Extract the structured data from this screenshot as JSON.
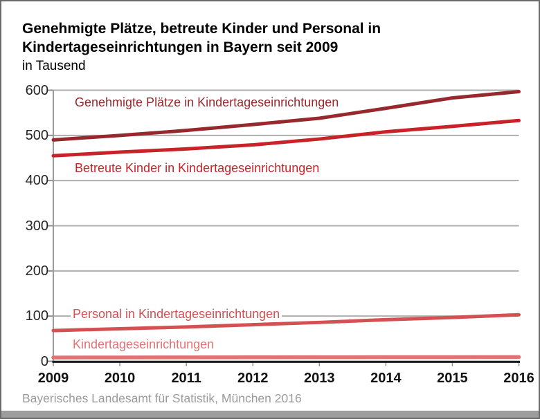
{
  "page": {
    "title_line1": "Genehmigte Plätze, betreute Kinder und Personal in",
    "title_line2": "Kindertageseinrichtungen in Bayern seit 2009",
    "subtitle": "in Tausend",
    "footer": "Bayerisches Landesamt für Statistik, München 2016"
  },
  "chart_data": {
    "type": "line",
    "title": "Genehmigte Plätze, betreute Kinder und Personal in Kindertageseinrichtungen in Bayern seit 2009",
    "subtitle": "in Tausend",
    "x": [
      2009,
      2010,
      2011,
      2012,
      2013,
      2014,
      2015,
      2016
    ],
    "ylim": [
      0,
      600
    ],
    "yticks": [
      0,
      100,
      200,
      300,
      400,
      500,
      600
    ],
    "grid": true,
    "legend_position": "inline-labels",
    "colors": {
      "gridline": "#aeaeae",
      "y_axis": "#9a9a9a",
      "x_axis": "#1c1c1c",
      "tick": "#8f8f8f",
      "footer_gray": "#9b9b9b"
    },
    "series": [
      {
        "name": "Genehmigte Plätze in Kindertageseinrichtungen",
        "color": "#97292E",
        "values": [
          490,
          500,
          511,
          524,
          538,
          560,
          583,
          597
        ]
      },
      {
        "name": "Betreute Kinder in Kindertageseinrichtungen",
        "color": "#C9232A",
        "values": [
          455,
          463,
          470,
          479,
          492,
          508,
          520,
          533
        ]
      },
      {
        "name": "Personal in Kindertageseinrichtungen",
        "color": "#D45052",
        "values": [
          68,
          72,
          76,
          81,
          86,
          92,
          97,
          103
        ]
      },
      {
        "name": "Kindertageseinrichtungen",
        "color": "#E17372",
        "values": [
          8.3,
          8.5,
          8.6,
          8.8,
          9.0,
          9.1,
          9.2,
          9.3
        ]
      }
    ]
  }
}
